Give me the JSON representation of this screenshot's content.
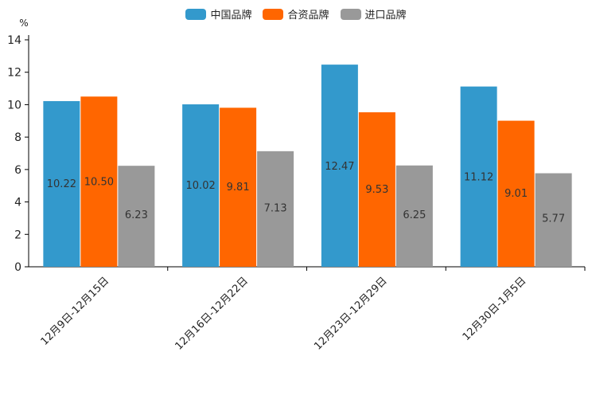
{
  "chart_data": {
    "type": "bar",
    "y_unit": "%",
    "categories": [
      "12月9日-12月15日",
      "12月16日-12月22日",
      "12月23日-12月29日",
      "12月30日-1月5日"
    ],
    "series": [
      {
        "name": "中国品牌",
        "color": "#3399cc",
        "values": [
          10.22,
          10.02,
          12.47,
          11.12
        ],
        "labels": [
          "10.22",
          "10.02",
          "12.47",
          "11.12"
        ]
      },
      {
        "name": "合资品牌",
        "color": "#ff6600",
        "values": [
          10.5,
          9.81,
          9.53,
          9.01
        ],
        "labels": [
          "10.50",
          "9.81",
          "9.53",
          "9.01"
        ]
      },
      {
        "name": "进口品牌",
        "color": "#999999",
        "values": [
          6.23,
          7.13,
          6.25,
          5.77
        ],
        "labels": [
          "6.23",
          "7.13",
          "6.25",
          "5.77"
        ]
      }
    ],
    "ylim": [
      0,
      14
    ],
    "yticks": [
      "0",
      "2",
      "4",
      "6",
      "8",
      "10",
      "12",
      "14"
    ],
    "legend_position": "top-center"
  }
}
